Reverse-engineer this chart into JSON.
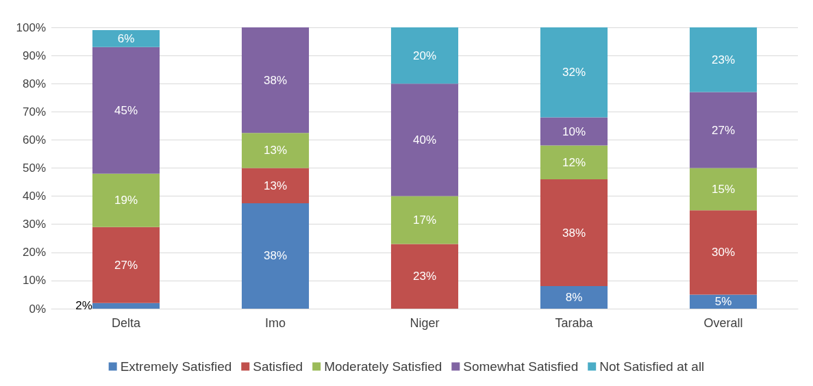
{
  "chart_data": {
    "type": "bar",
    "stacked": true,
    "categories": [
      "Delta",
      "Imo",
      "Niger",
      "Taraba",
      "Overall"
    ],
    "series": [
      {
        "name": "Extremely Satisfied",
        "color": "#4f81bd",
        "values": [
          2,
          37.5,
          0,
          8,
          5
        ],
        "value_labels": [
          "2%",
          "38%",
          null,
          "8%",
          "5%"
        ]
      },
      {
        "name": "Satisfied",
        "color": "#c0504d",
        "values": [
          27,
          12.5,
          23,
          38,
          30
        ],
        "value_labels": [
          "27%",
          "13%",
          "23%",
          "38%",
          "30%"
        ]
      },
      {
        "name": "Moderately Satisfied",
        "color": "#9bbb59",
        "values": [
          19,
          12.5,
          17,
          12,
          15
        ],
        "value_labels": [
          "19%",
          "13%",
          "17%",
          "12%",
          "15%"
        ]
      },
      {
        "name": "Somewhat Satisfied",
        "color": "#8064a2",
        "values": [
          45,
          37.5,
          40,
          10,
          27
        ],
        "value_labels": [
          "45%",
          "38%",
          "40%",
          "10%",
          "27%"
        ]
      },
      {
        "name": "Not Satisfied at all",
        "color": "#4bacc6",
        "values": [
          6,
          0,
          20,
          32,
          23
        ],
        "value_labels": [
          "6%",
          null,
          "20%",
          "32%",
          "23%"
        ]
      }
    ],
    "ylim": [
      0,
      100
    ],
    "yticks": [
      {
        "value": 0,
        "label": "0%"
      },
      {
        "value": 10,
        "label": "10%"
      },
      {
        "value": 20,
        "label": "20%"
      },
      {
        "value": 30,
        "label": "30%"
      },
      {
        "value": 40,
        "label": "40%"
      },
      {
        "value": 50,
        "label": "50%"
      },
      {
        "value": 60,
        "label": "60%"
      },
      {
        "value": 70,
        "label": "70%"
      },
      {
        "value": 80,
        "label": "80%"
      },
      {
        "value": 90,
        "label": "90%"
      },
      {
        "value": 100,
        "label": "100%"
      }
    ],
    "grid": "y",
    "legend": "bottom"
  }
}
